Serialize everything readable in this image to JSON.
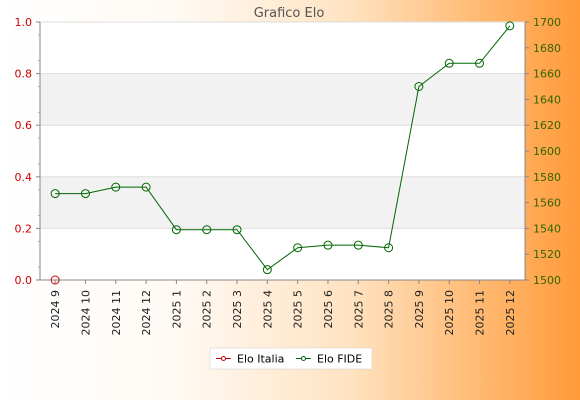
{
  "chart_data": {
    "type": "line",
    "title": "Grafico Elo",
    "categories": [
      "2024 9",
      "2024 10",
      "2024 11",
      "2024 12",
      "2025 1",
      "2025 2",
      "2025 3",
      "2025 4",
      "2025 5",
      "2025 6",
      "2025 7",
      "2025 8",
      "2025 9",
      "2025 10",
      "2025 11",
      "2025 12"
    ],
    "y_left": {
      "ylim": [
        0,
        1
      ],
      "ticks": [
        "0.0",
        "0.2",
        "0.4",
        "0.6",
        "0.8",
        "1.0"
      ],
      "color": "#cc0000"
    },
    "y_right": {
      "ylim": [
        1500,
        1700
      ],
      "ticks": [
        "1500",
        "1520",
        "1540",
        "1560",
        "1580",
        "1600",
        "1620",
        "1640",
        "1660",
        "1680",
        "1700"
      ],
      "color": "#336600"
    },
    "series": [
      {
        "name": "Elo Italia",
        "axis": "left",
        "color": "#cc0000",
        "values": [
          0,
          null,
          null,
          null,
          null,
          null,
          null,
          null,
          null,
          null,
          null,
          null,
          null,
          null,
          null,
          null
        ]
      },
      {
        "name": "Elo FIDE",
        "axis": "right",
        "color": "#006600",
        "values": [
          1567,
          1567,
          1572,
          1572,
          1539,
          1539,
          1539,
          1508,
          1525,
          1527,
          1527,
          1525,
          1650,
          1668,
          1668,
          1697
        ]
      }
    ],
    "grid": true,
    "legend_position": "bottom"
  }
}
